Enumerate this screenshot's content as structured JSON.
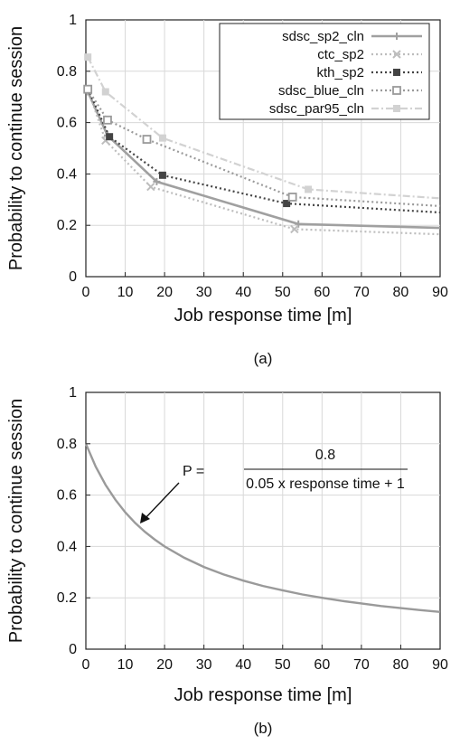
{
  "chart_data": [
    {
      "type": "line",
      "caption": "(a)",
      "xlabel": "Job response time [m]",
      "ylabel": "Probability to continue session",
      "xlim": [
        0,
        90
      ],
      "ylim": [
        0,
        1
      ],
      "xticks": [
        0,
        10,
        20,
        30,
        40,
        50,
        60,
        70,
        80,
        90
      ],
      "yticks": [
        0,
        0.2,
        0.4,
        0.6,
        0.8,
        1
      ],
      "grid": true,
      "legend_position": "top-right",
      "series": [
        {
          "name": "sdsc_sp2_cln",
          "color": "#a0a0a0",
          "line": "solid",
          "marker": "plus",
          "x": [
            0.5,
            5.5,
            18,
            54,
            90
          ],
          "y": [
            0.72,
            0.55,
            0.37,
            0.205,
            0.19
          ]
        },
        {
          "name": "ctc_sp2",
          "color": "#bdbdbd",
          "line": "dotted",
          "marker": "x",
          "x": [
            0.5,
            5,
            16.5,
            53,
            90
          ],
          "y": [
            0.73,
            0.53,
            0.35,
            0.185,
            0.165
          ]
        },
        {
          "name": "kth_sp2",
          "color": "#444444",
          "line": "dotted",
          "marker": "filled-square",
          "x": [
            0.5,
            6,
            19.5,
            51,
            90
          ],
          "y": [
            0.73,
            0.545,
            0.395,
            0.285,
            0.25
          ]
        },
        {
          "name": "sdsc_blue_cln",
          "color": "#9a9a9a",
          "line": "dotted",
          "marker": "open-square",
          "x": [
            0.5,
            5.5,
            15.5,
            52.5,
            90
          ],
          "y": [
            0.73,
            0.61,
            0.535,
            0.31,
            0.275
          ]
        },
        {
          "name": "sdsc_par95_cln",
          "color": "#d2d2d2",
          "line": "dash-dot",
          "marker": "filled-square",
          "x": [
            0.5,
            5,
            19.5,
            56.5,
            90
          ],
          "y": [
            0.855,
            0.72,
            0.54,
            0.34,
            0.305
          ]
        }
      ]
    },
    {
      "type": "line",
      "caption": "(b)",
      "xlabel": "Job response time [m]",
      "ylabel": "Probability to continue session",
      "xlim": [
        0,
        90
      ],
      "ylim": [
        0,
        1
      ],
      "xticks": [
        0,
        10,
        20,
        30,
        40,
        50,
        60,
        70,
        80,
        90
      ],
      "yticks": [
        0,
        0.2,
        0.4,
        0.6,
        0.8,
        1
      ],
      "grid": true,
      "formula": {
        "lhs": "P =",
        "numerator": "0.8",
        "denominator": "0.05 x response time + 1"
      },
      "curve": {
        "color": "#9a9a9a",
        "x": [
          0,
          2.5,
          5,
          7.5,
          10,
          12.5,
          15,
          17.5,
          20,
          25,
          30,
          35,
          40,
          45,
          50,
          55,
          60,
          65,
          70,
          75,
          80,
          85,
          90
        ],
        "y": [
          0.8,
          0.711,
          0.64,
          0.582,
          0.533,
          0.492,
          0.457,
          0.427,
          0.4,
          0.356,
          0.32,
          0.291,
          0.267,
          0.246,
          0.229,
          0.213,
          0.2,
          0.188,
          0.178,
          0.168,
          0.16,
          0.152,
          0.145
        ]
      }
    }
  ]
}
